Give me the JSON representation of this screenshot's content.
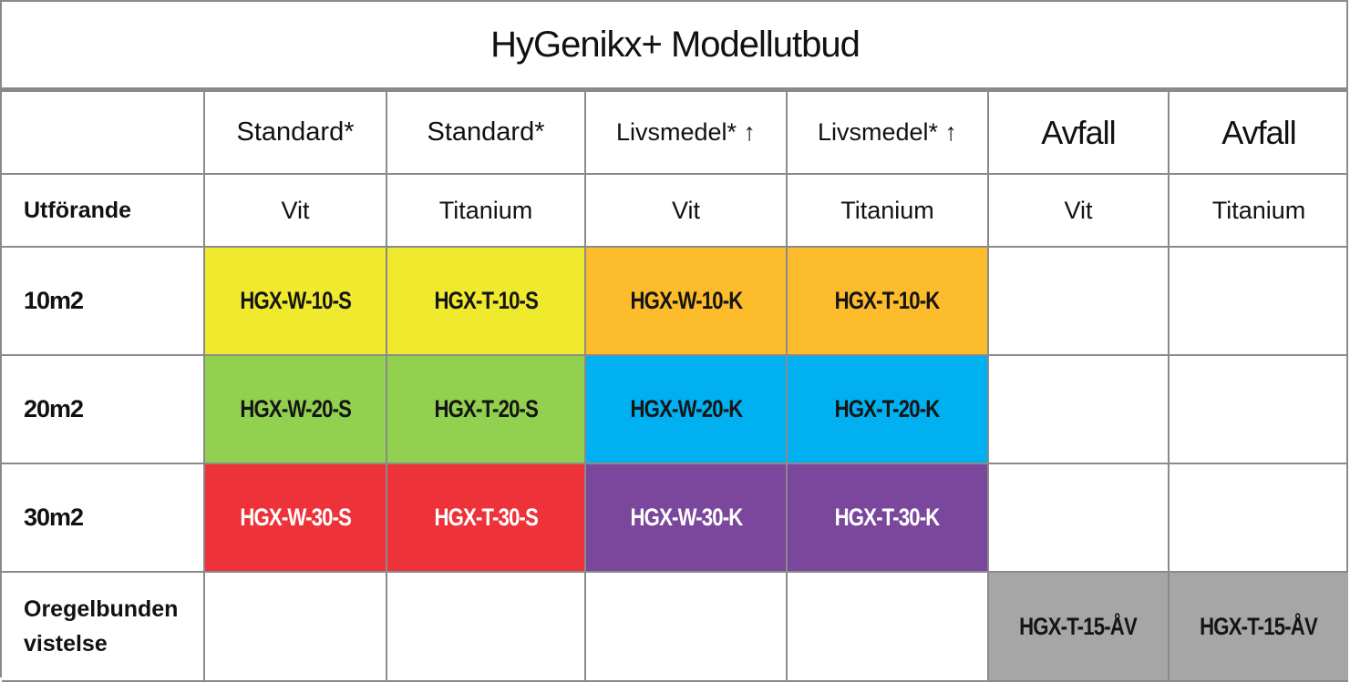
{
  "title": "HyGenikx+ Modellutbud",
  "columns": [
    {
      "category": "Standard*",
      "variant": "Vit"
    },
    {
      "category": "Standard*",
      "variant": "Titanium"
    },
    {
      "category": "Livsmedel* ↑",
      "variant": "Vit"
    },
    {
      "category": "Livsmedel* ↑",
      "variant": "Titanium"
    },
    {
      "category": "Avfall",
      "variant": "Vit"
    },
    {
      "category": "Avfall",
      "variant": "Titanium"
    }
  ],
  "variant_row_label": "Utförande",
  "rows": [
    {
      "label": "10m2",
      "cells": [
        "HGX-W-10-S",
        "HGX-T-10-S",
        "HGX-W-10-K",
        "HGX-T-10-K",
        "",
        ""
      ]
    },
    {
      "label": "20m2",
      "cells": [
        "HGX-W-20-S",
        "HGX-T-20-S",
        "HGX-W-20-K",
        "HGX-T-20-K",
        "",
        ""
      ]
    },
    {
      "label": "30m2",
      "cells": [
        "HGX-W-30-S",
        "HGX-T-30-S",
        "HGX-W-30-K",
        "HGX-T-30-K",
        "",
        ""
      ]
    },
    {
      "label_line1": "Oregelbunden",
      "label_line2": "vistelse",
      "cells": [
        "",
        "",
        "",
        "",
        "HGX-T-15-ÅV",
        "HGX-T-15-ÅV"
      ]
    }
  ],
  "colors": {
    "yellow": "#f0ea2e",
    "orange": "#fdbc2b",
    "green": "#92d050",
    "blue": "#00b0f0",
    "red": "#ee3239",
    "purple": "#7a479d",
    "gray": "#a6a6a6",
    "border": "#8a8a8a"
  }
}
